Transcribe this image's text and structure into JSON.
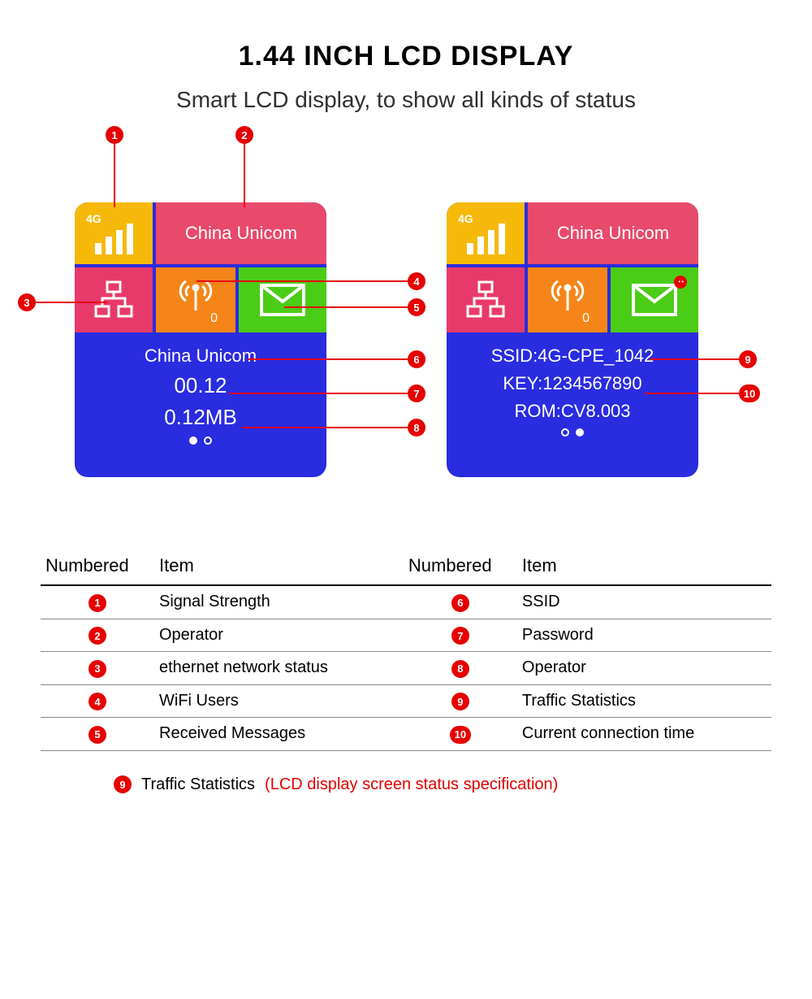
{
  "header": {
    "title": "1.44 INCH LCD DISPLAY",
    "subtitle": "Smart LCD display, to show all kinds of status"
  },
  "colors": {
    "signal_bg": "#f6b90a",
    "operator_bg": "#e84a6c",
    "ethernet_bg": "#e83a6a",
    "wifi_bg": "#f58518",
    "message_bg": "#4bcc16",
    "screen_bg": "#2a2ce0",
    "callout_red": "#e60000",
    "icon_white": "#ffffff"
  },
  "screen1": {
    "signal_label": "4G",
    "operator": "China Unicom",
    "wifi_count": "0",
    "bottom_line1": "China Unicom",
    "bottom_line2": "00.12",
    "bottom_line3": "0.12MB",
    "pager_active": 1
  },
  "screen2": {
    "signal_label": "4G",
    "operator": "China Unicom",
    "wifi_count": "0",
    "bottom_line1": "SSID:4G-CPE_1042",
    "bottom_line2": "KEY:1234567890",
    "bottom_line3": "ROM:CV8.003",
    "pager_active": 2,
    "msg_has_badge": true
  },
  "callouts": {
    "c1": "1",
    "c2": "2",
    "c3": "3",
    "c4": "4",
    "c5": "5",
    "c6": "6",
    "c7": "7",
    "c8": "8",
    "c9": "9",
    "c10": "10"
  },
  "table": {
    "headers": {
      "col1": "Numbered",
      "col2": "Item",
      "col3": "Numbered",
      "col4": "Item"
    },
    "rows": [
      {
        "n1": "1",
        "i1": "Signal Strength",
        "n2": "6",
        "i2": "SSID"
      },
      {
        "n1": "2",
        "i1": "Operator",
        "n2": "7",
        "i2": "Password"
      },
      {
        "n1": "3",
        "i1": "ethernet network status",
        "n2": "8",
        "i2": "Operator"
      },
      {
        "n1": "4",
        "i1": "WiFi Users",
        "n2": "9",
        "i2": "Traffic Statistics"
      },
      {
        "n1": "5",
        "i1": "Received Messages",
        "n2": "10",
        "i2": "Current connection time"
      }
    ]
  },
  "footnote": {
    "num": "9",
    "label": "Traffic Statistics",
    "note": "(LCD display screen status specification)"
  }
}
